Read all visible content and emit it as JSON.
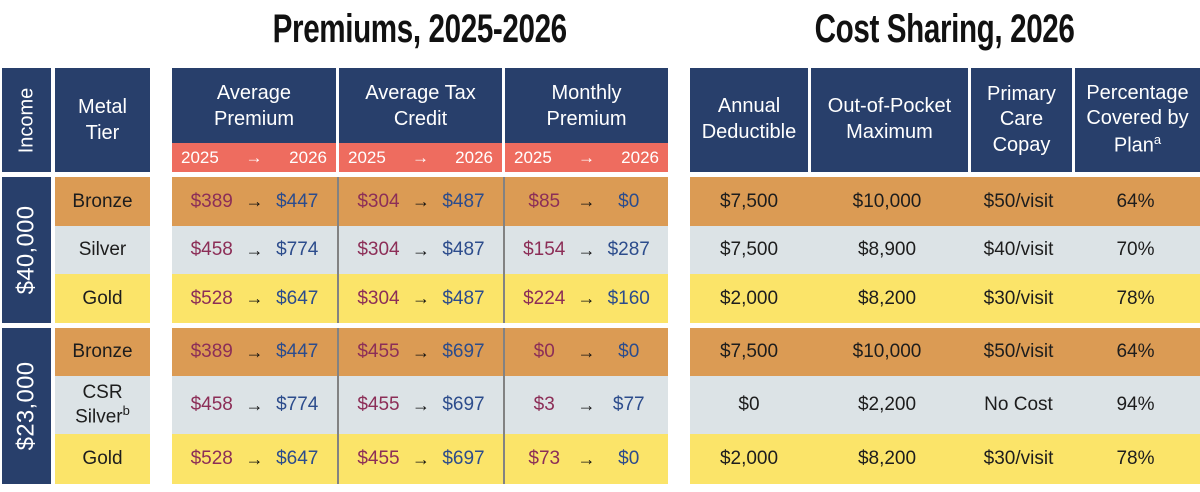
{
  "titles": {
    "premiums": "Premiums, 2025-2026",
    "cost_sharing": "Cost Sharing, 2026"
  },
  "symbols": {
    "arrow": "→"
  },
  "colors": {
    "navy": "#283f6b",
    "salmon": "#ee6c5f",
    "bronze": "#db9b54",
    "silver": "#dce3e6",
    "gold": "#fbe469",
    "maroon_2025": "#8c2e57",
    "blue_2026": "#2c4c8c",
    "ink": "#1d1d1d",
    "separator": "#828282"
  },
  "row_headers": {
    "income_label": "Income",
    "metal_tier_label": "Metal Tier"
  },
  "premiums_table": {
    "columns": [
      {
        "label": "Average Premium",
        "year_from": "2025",
        "year_to": "2026"
      },
      {
        "label": "Average Tax Credit",
        "year_from": "2025",
        "year_to": "2026"
      },
      {
        "label": "Monthly Premium",
        "year_from": "2025",
        "year_to": "2026"
      }
    ]
  },
  "cost_table": {
    "columns": [
      {
        "label": "Annual Deductible"
      },
      {
        "label": "Out-of-Pocket Maximum"
      },
      {
        "label": "Primary Care Copay"
      },
      {
        "label": "Percentage Covered by Plan",
        "footnote": "a"
      }
    ]
  },
  "groups": [
    {
      "income": "$40,000",
      "rows": [
        {
          "tier": "Bronze",
          "avg_premium_2025": "$389",
          "avg_premium_2026": "$447",
          "tax_credit_2025": "$304",
          "tax_credit_2026": "$487",
          "monthly_2025": "$85",
          "monthly_2026": "$0",
          "deductible": "$7,500",
          "oop_max": "$10,000",
          "copay": "$50/visit",
          "pct_covered": "64%"
        },
        {
          "tier": "Silver",
          "avg_premium_2025": "$458",
          "avg_premium_2026": "$774",
          "tax_credit_2025": "$304",
          "tax_credit_2026": "$487",
          "monthly_2025": "$154",
          "monthly_2026": "$287",
          "deductible": "$7,500",
          "oop_max": "$8,900",
          "copay": "$40/visit",
          "pct_covered": "70%"
        },
        {
          "tier": "Gold",
          "avg_premium_2025": "$528",
          "avg_premium_2026": "$647",
          "tax_credit_2025": "$304",
          "tax_credit_2026": "$487",
          "monthly_2025": "$224",
          "monthly_2026": "$160",
          "deductible": "$2,000",
          "oop_max": "$8,200",
          "copay": "$30/visit",
          "pct_covered": "78%"
        }
      ]
    },
    {
      "income": "$23,000",
      "rows": [
        {
          "tier": "Bronze",
          "avg_premium_2025": "$389",
          "avg_premium_2026": "$447",
          "tax_credit_2025": "$455",
          "tax_credit_2026": "$697",
          "monthly_2025": "$0",
          "monthly_2026": "$0",
          "deductible": "$7,500",
          "oop_max": "$10,000",
          "copay": "$50/visit",
          "pct_covered": "64%"
        },
        {
          "tier_line1": "CSR",
          "tier_line2": "Silver",
          "tier_footnote": "b",
          "avg_premium_2025": "$458",
          "avg_premium_2026": "$774",
          "tax_credit_2025": "$455",
          "tax_credit_2026": "$697",
          "monthly_2025": "$3",
          "monthly_2026": "$77",
          "deductible": "$0",
          "oop_max": "$2,200",
          "copay": "No Cost",
          "pct_covered": "94%"
        },
        {
          "tier": "Gold",
          "avg_premium_2025": "$528",
          "avg_premium_2026": "$647",
          "tax_credit_2025": "$455",
          "tax_credit_2026": "$697",
          "monthly_2025": "$73",
          "monthly_2026": "$0",
          "deductible": "$2,000",
          "oop_max": "$8,200",
          "copay": "$30/visit",
          "pct_covered": "78%"
        }
      ]
    }
  ],
  "chart_data": {
    "type": "table",
    "title": "Premiums, 2025-2026 and Cost Sharing, 2026",
    "columns": [
      "Income",
      "Metal Tier",
      "Average Premium 2025",
      "Average Premium 2026",
      "Average Tax Credit 2025",
      "Average Tax Credit 2026",
      "Monthly Premium 2025",
      "Monthly Premium 2026",
      "Annual Deductible",
      "Out-of-Pocket Maximum",
      "Primary Care Copay",
      "Percentage Covered by Plan"
    ],
    "rows": [
      [
        "$40,000",
        "Bronze",
        389,
        447,
        304,
        487,
        85,
        0,
        7500,
        10000,
        "$50/visit",
        "64%"
      ],
      [
        "$40,000",
        "Silver",
        458,
        774,
        304,
        487,
        154,
        287,
        7500,
        8900,
        "$40/visit",
        "70%"
      ],
      [
        "$40,000",
        "Gold",
        528,
        647,
        304,
        487,
        224,
        160,
        2000,
        8200,
        "$30/visit",
        "78%"
      ],
      [
        "$23,000",
        "Bronze",
        389,
        447,
        455,
        697,
        0,
        0,
        7500,
        10000,
        "$50/visit",
        "64%"
      ],
      [
        "$23,000",
        "CSR Silver",
        458,
        774,
        455,
        697,
        3,
        77,
        0,
        2200,
        "No Cost",
        "94%"
      ],
      [
        "$23,000",
        "Gold",
        528,
        647,
        455,
        697,
        73,
        0,
        2000,
        8200,
        "$30/visit",
        "78%"
      ]
    ]
  }
}
